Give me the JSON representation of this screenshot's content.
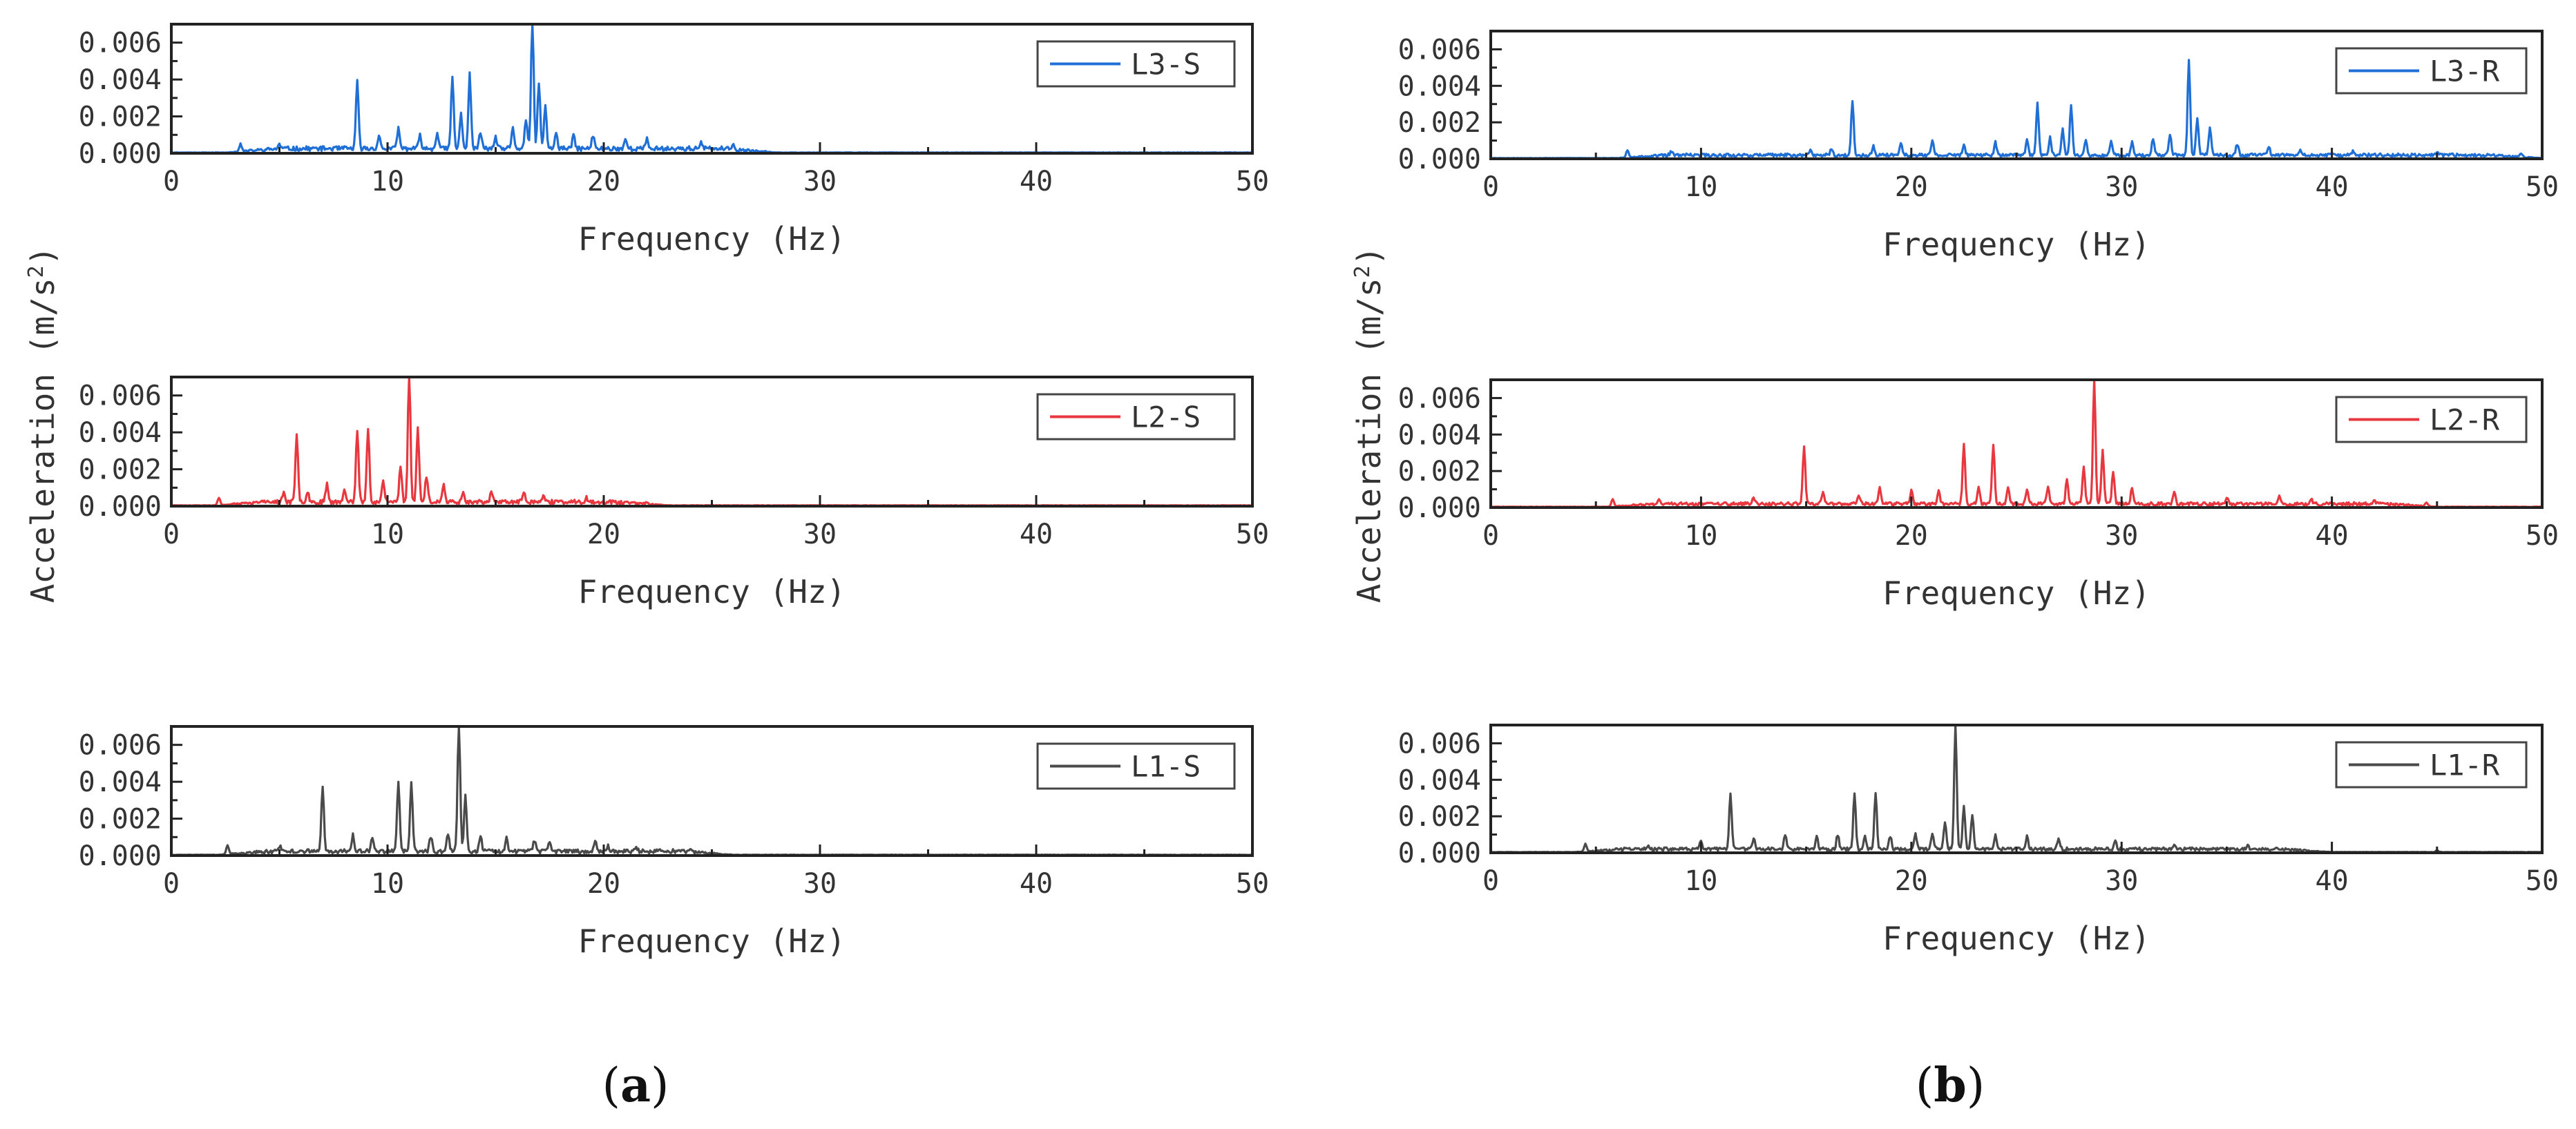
{
  "figure_labels": {
    "a_prefix": "(",
    "a_letter": "a",
    "a_suffix": ")",
    "b_prefix": "(",
    "b_letter": "b",
    "b_suffix": ")"
  },
  "shared": {
    "xlabel": "Frequency (Hz)",
    "ylabel_main": "Acceleration (m/s",
    "ylabel_sup": "2",
    "ylabel_end": ")",
    "x_ticks": [
      "0",
      "10",
      "20",
      "30",
      "40",
      "50"
    ],
    "y_ticks": [
      "0.000",
      "0.002",
      "0.004",
      "0.006"
    ]
  },
  "chart_data": [
    {
      "type": "line",
      "name": "L3-S",
      "color": "#1f6fd6",
      "xlabel": "Frequency (Hz)",
      "xlim": [
        0,
        50
      ],
      "ylim": [
        0,
        0.007
      ],
      "peaks": [
        [
          3.2,
          0.0004
        ],
        [
          5.0,
          0.0002
        ],
        [
          8.6,
          0.0036
        ],
        [
          9.6,
          0.0007
        ],
        [
          10.5,
          0.0011
        ],
        [
          11.5,
          0.0007
        ],
        [
          12.3,
          0.0009
        ],
        [
          13.0,
          0.0039
        ],
        [
          13.4,
          0.0019
        ],
        [
          13.8,
          0.004
        ],
        [
          14.3,
          0.0009
        ],
        [
          15.0,
          0.0006
        ],
        [
          15.8,
          0.0011
        ],
        [
          16.4,
          0.0016
        ],
        [
          16.7,
          0.0071
        ],
        [
          17.0,
          0.0036
        ],
        [
          17.3,
          0.0023
        ],
        [
          17.8,
          0.0008
        ],
        [
          18.6,
          0.0007
        ],
        [
          19.5,
          0.0007
        ],
        [
          21.0,
          0.0005
        ],
        [
          22.0,
          0.0005
        ],
        [
          24.5,
          0.0003
        ],
        [
          26.0,
          0.0002
        ]
      ],
      "noise": [
        2.5,
        28,
        0.00025,
        9e-05
      ],
      "seed": 11
    },
    {
      "type": "line",
      "name": "L2-S",
      "color": "#e8373f",
      "xlabel": "Frequency (Hz)",
      "xlim": [
        0,
        50
      ],
      "ylim": [
        0,
        0.007
      ],
      "peaks": [
        [
          2.2,
          0.0004
        ],
        [
          5.2,
          0.0005
        ],
        [
          5.8,
          0.0036
        ],
        [
          6.3,
          0.0006
        ],
        [
          7.2,
          0.001
        ],
        [
          8.0,
          0.0006
        ],
        [
          8.6,
          0.0039
        ],
        [
          9.1,
          0.004
        ],
        [
          9.8,
          0.0011
        ],
        [
          10.6,
          0.002
        ],
        [
          11.0,
          0.007
        ],
        [
          11.4,
          0.004
        ],
        [
          11.8,
          0.0014
        ],
        [
          12.6,
          0.0009
        ],
        [
          13.5,
          0.0006
        ],
        [
          14.8,
          0.0005
        ],
        [
          16.3,
          0.0005
        ],
        [
          17.2,
          0.0003
        ],
        [
          19.2,
          0.0002
        ],
        [
          22.0,
          0.0001
        ]
      ],
      "noise": [
        2.0,
        23,
        0.00022,
        8e-05
      ],
      "seed": 23
    },
    {
      "type": "line",
      "name": "L1-S",
      "color": "#4a4a4a",
      "xlabel": "Frequency (Hz)",
      "xlim": [
        0,
        50
      ],
      "ylim": [
        0,
        0.007
      ],
      "peaks": [
        [
          2.6,
          0.0005
        ],
        [
          5.0,
          0.0003
        ],
        [
          7.0,
          0.0035
        ],
        [
          8.4,
          0.0009
        ],
        [
          9.3,
          0.0007
        ],
        [
          10.5,
          0.0037
        ],
        [
          11.1,
          0.0037
        ],
        [
          12.0,
          0.0008
        ],
        [
          12.8,
          0.001
        ],
        [
          13.3,
          0.007
        ],
        [
          13.6,
          0.0031
        ],
        [
          14.3,
          0.0009
        ],
        [
          15.5,
          0.0007
        ],
        [
          16.8,
          0.0006
        ],
        [
          17.5,
          0.0005
        ],
        [
          19.6,
          0.0006
        ],
        [
          20.2,
          0.0003
        ],
        [
          21.5,
          0.0002
        ],
        [
          24.0,
          0.0001
        ]
      ],
      "noise": [
        2.2,
        26,
        0.00022,
        8e-05
      ],
      "seed": 37
    },
    {
      "type": "line",
      "name": "L3-R",
      "color": "#1f6fd6",
      "xlabel": "Frequency (Hz)",
      "xlim": [
        0,
        50
      ],
      "ylim": [
        0,
        0.007
      ],
      "peaks": [
        [
          6.5,
          0.0004
        ],
        [
          8.6,
          0.0002
        ],
        [
          15.2,
          0.0003
        ],
        [
          16.2,
          0.0004
        ],
        [
          17.2,
          0.0029
        ],
        [
          18.2,
          0.0005
        ],
        [
          19.5,
          0.0007
        ],
        [
          21.0,
          0.0008
        ],
        [
          22.5,
          0.0006
        ],
        [
          24.0,
          0.0007
        ],
        [
          25.5,
          0.0009
        ],
        [
          26.0,
          0.0028
        ],
        [
          26.6,
          0.001
        ],
        [
          27.2,
          0.0014
        ],
        [
          27.6,
          0.0028
        ],
        [
          28.3,
          0.0009
        ],
        [
          29.5,
          0.0008
        ],
        [
          30.5,
          0.0007
        ],
        [
          31.5,
          0.0009
        ],
        [
          32.3,
          0.0012
        ],
        [
          33.2,
          0.0053
        ],
        [
          33.6,
          0.0021
        ],
        [
          34.2,
          0.0015
        ],
        [
          35.5,
          0.0006
        ],
        [
          37.0,
          0.0005
        ],
        [
          38.5,
          0.0003
        ],
        [
          41.0,
          0.0002
        ],
        [
          45.0,
          0.0002
        ],
        [
          49.0,
          0.0002
        ]
      ],
      "noise": [
        6.0,
        50,
        0.00018,
        7e-05
      ],
      "seed": 53
    },
    {
      "type": "line",
      "name": "L2-R",
      "color": "#e8373f",
      "xlabel": "Frequency (Hz)",
      "xlim": [
        0,
        50
      ],
      "ylim": [
        0,
        0.007
      ],
      "peaks": [
        [
          5.8,
          0.0004
        ],
        [
          8.0,
          0.0002
        ],
        [
          12.5,
          0.0003
        ],
        [
          14.9,
          0.0031
        ],
        [
          15.8,
          0.0006
        ],
        [
          17.5,
          0.0005
        ],
        [
          18.5,
          0.0009
        ],
        [
          20.0,
          0.0007
        ],
        [
          21.3,
          0.0008
        ],
        [
          22.5,
          0.0033
        ],
        [
          23.2,
          0.0009
        ],
        [
          23.9,
          0.0033
        ],
        [
          24.6,
          0.0009
        ],
        [
          25.5,
          0.0008
        ],
        [
          26.5,
          0.0009
        ],
        [
          27.4,
          0.0013
        ],
        [
          28.2,
          0.002
        ],
        [
          28.7,
          0.0068
        ],
        [
          29.1,
          0.003
        ],
        [
          29.6,
          0.0018
        ],
        [
          30.5,
          0.0009
        ],
        [
          32.5,
          0.0007
        ],
        [
          35.0,
          0.0004
        ],
        [
          37.5,
          0.0004
        ],
        [
          39.0,
          0.0003
        ],
        [
          42.0,
          0.0002
        ],
        [
          44.5,
          0.0002
        ]
      ],
      "noise": [
        5.5,
        45,
        0.00018,
        7e-05
      ],
      "seed": 71
    },
    {
      "type": "line",
      "name": "L1-R",
      "color": "#4a4a4a",
      "xlabel": "Frequency (Hz)",
      "xlim": [
        0,
        50
      ],
      "ylim": [
        0,
        0.007
      ],
      "peaks": [
        [
          4.5,
          0.0004
        ],
        [
          7.5,
          0.0002
        ],
        [
          10.0,
          0.0004
        ],
        [
          11.4,
          0.003
        ],
        [
          12.5,
          0.0006
        ],
        [
          14.0,
          0.0008
        ],
        [
          15.5,
          0.0007
        ],
        [
          16.5,
          0.0008
        ],
        [
          17.3,
          0.0031
        ],
        [
          17.8,
          0.0007
        ],
        [
          18.3,
          0.0031
        ],
        [
          19.0,
          0.0007
        ],
        [
          20.2,
          0.0008
        ],
        [
          21.0,
          0.0009
        ],
        [
          21.6,
          0.0015
        ],
        [
          22.1,
          0.0069
        ],
        [
          22.5,
          0.0024
        ],
        [
          22.9,
          0.0019
        ],
        [
          24.0,
          0.0008
        ],
        [
          25.5,
          0.0007
        ],
        [
          27.0,
          0.0005
        ],
        [
          29.7,
          0.0004
        ],
        [
          32.5,
          0.0003
        ],
        [
          36.0,
          0.0002
        ],
        [
          45.0,
          0.0001
        ]
      ],
      "noise": [
        4.0,
        40,
        0.00018,
        7e-05
      ],
      "seed": 97
    }
  ]
}
